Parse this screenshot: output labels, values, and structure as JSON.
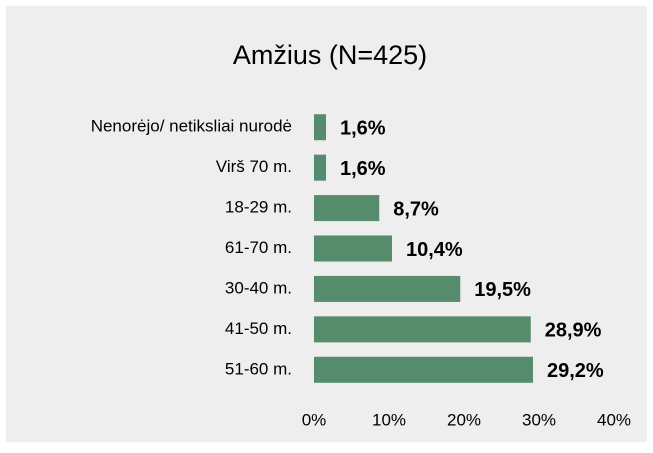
{
  "chart_data": {
    "type": "barh",
    "title": "Amžius (N=425)",
    "categories": [
      "Nenorėjo/ netiksliai nurodė",
      "Virš 70 m.",
      "18-29 m.",
      "61-70 m.",
      "30-40 m.",
      "41-50 m.",
      "51-60 m."
    ],
    "values": [
      1.6,
      1.6,
      8.7,
      10.4,
      19.5,
      28.9,
      29.2
    ],
    "value_labels": [
      "1,6%",
      "1,6%",
      "8,7%",
      "10,4%",
      "19,5%",
      "28,9%",
      "29,2%"
    ],
    "color": "#568b6b",
    "xlim": [
      0,
      40
    ],
    "xticks": [
      {
        "value": 0,
        "label": "0%"
      },
      {
        "value": 10,
        "label": "10%"
      },
      {
        "value": 20,
        "label": "20%"
      },
      {
        "value": 30,
        "label": "30%"
      },
      {
        "value": 40,
        "label": "40%"
      }
    ],
    "grid": false
  }
}
